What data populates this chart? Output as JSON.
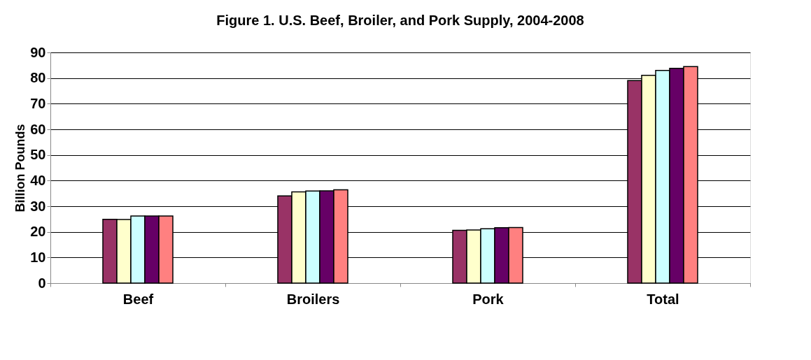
{
  "chart_data": {
    "type": "bar",
    "title": "Figure 1. U.S. Beef, Broiler, and Pork Supply, 2004-2008",
    "ylabel": "Billion Pounds",
    "categories": [
      "Beef",
      "Broilers",
      "Pork",
      "Total"
    ],
    "series": [
      {
        "color": "#993366",
        "values": [
          24.9,
          34.0,
          20.6,
          79.0
        ]
      },
      {
        "color": "#ffffcc",
        "values": [
          24.8,
          35.6,
          20.7,
          81.1
        ]
      },
      {
        "color": "#ccffff",
        "values": [
          26.2,
          35.9,
          21.2,
          83.0
        ]
      },
      {
        "color": "#660066",
        "values": [
          26.2,
          36.0,
          21.6,
          83.8
        ]
      },
      {
        "color": "#ff8080",
        "values": [
          26.2,
          36.4,
          21.7,
          84.5
        ]
      }
    ],
    "ylim": [
      0,
      90
    ],
    "yticks": [
      0,
      10,
      20,
      30,
      40,
      50,
      60,
      70,
      80,
      90
    ],
    "grid": "y",
    "legend": false
  }
}
